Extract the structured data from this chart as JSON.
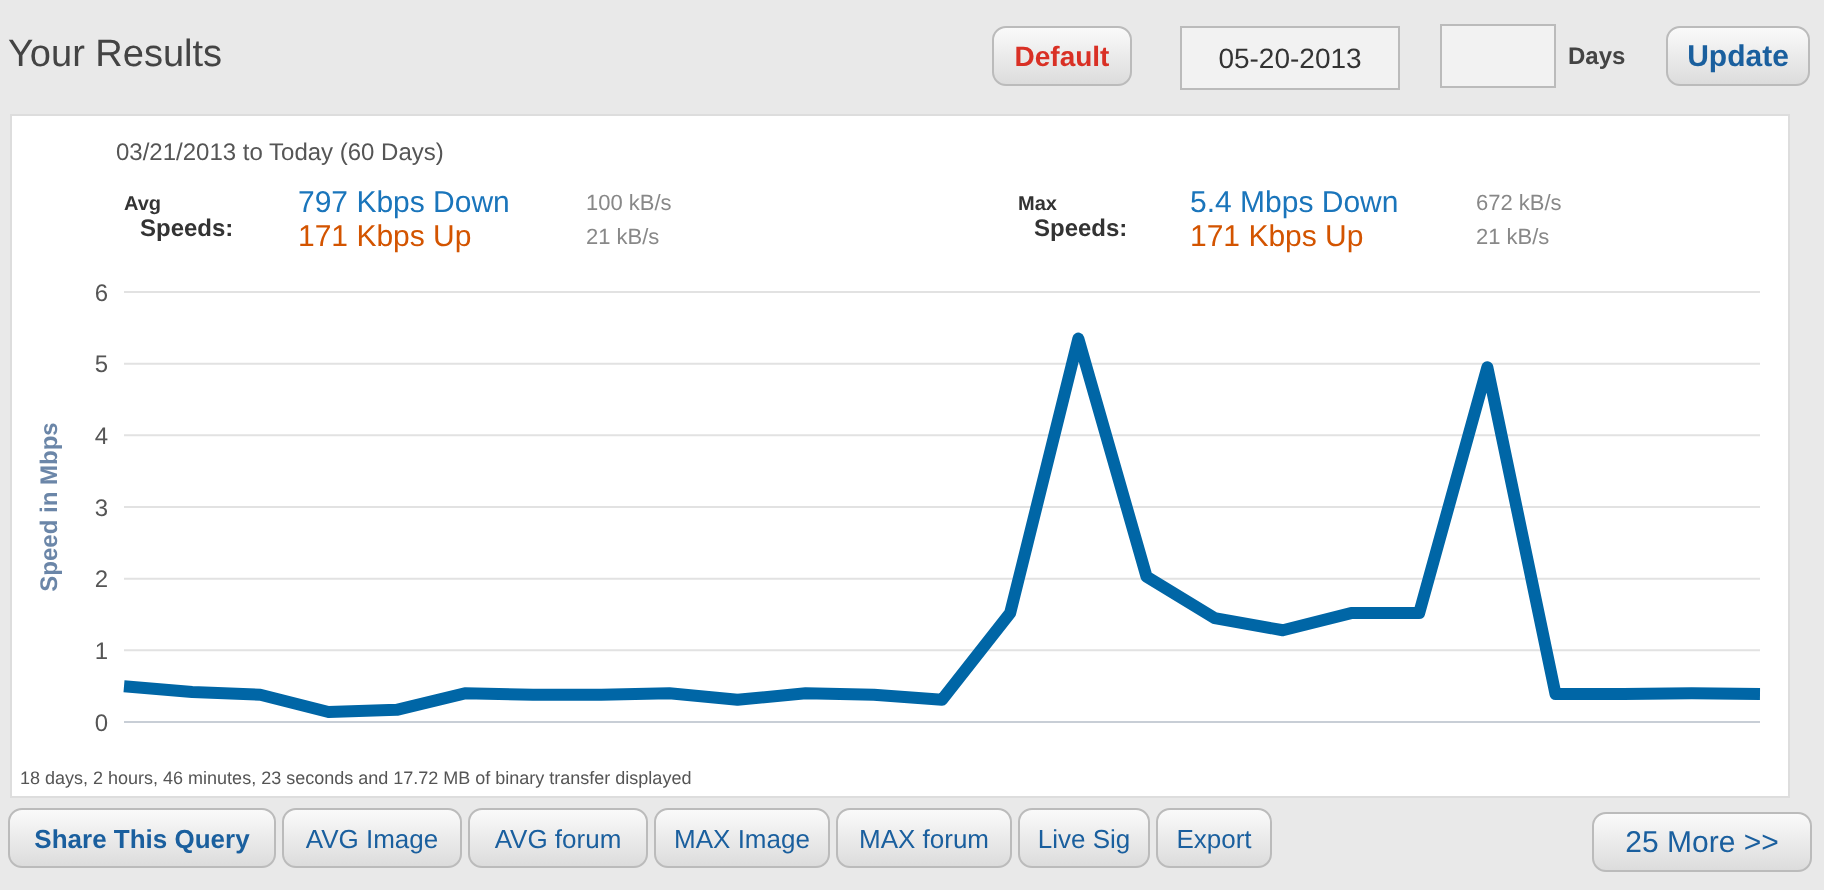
{
  "chart_data": {
    "type": "line",
    "title": "Your Results",
    "subtitle": "03/21/2013 to Today (60 Days)",
    "ylabel": "Speed in Mbps",
    "categories": [
      null,
      null,
      null,
      null,
      null,
      null,
      null,
      null,
      null,
      null,
      null,
      null,
      null,
      null,
      null,
      null,
      null,
      null,
      null,
      null,
      null,
      null,
      null,
      null,
      null
    ],
    "series": [
      {
        "color": "#0066a6",
        "values": [
          0.5,
          0.42,
          0.38,
          0.14,
          0.17,
          0.4,
          0.38,
          0.38,
          0.4,
          0.31,
          0.4,
          0.38,
          0.31,
          1.52,
          5.35,
          2.03,
          1.45,
          1.28,
          1.52,
          1.52,
          4.95,
          0.39,
          0.39,
          0.4,
          0.39
        ]
      }
    ],
    "ylim": [
      0,
      6
    ],
    "yticks": [
      0,
      1,
      2,
      3,
      4,
      5,
      6
    ],
    "grid": "y",
    "marker": "none",
    "line_style": "solid",
    "annotations": [
      "Avg",
      "Speeds:",
      "797 Kbps Down",
      "171 Kbps Up",
      "100 kB/s",
      "21 kB/s",
      "Max",
      "Speeds:",
      "5.4 Mbps Down",
      "171 Kbps Up",
      "672 kB/s",
      "21 kB/s",
      "18 days, 2 hours, 46 minutes, 23 seconds and 17.72 MB of binary transfer displayed",
      "Default",
      "05-20-2013",
      "Days",
      "Update",
      "Share This Query",
      "AVG Image",
      "AVG forum",
      "MAX Image",
      "MAX forum",
      "Live Sig",
      "Export",
      "25 More >>"
    ]
  }
}
